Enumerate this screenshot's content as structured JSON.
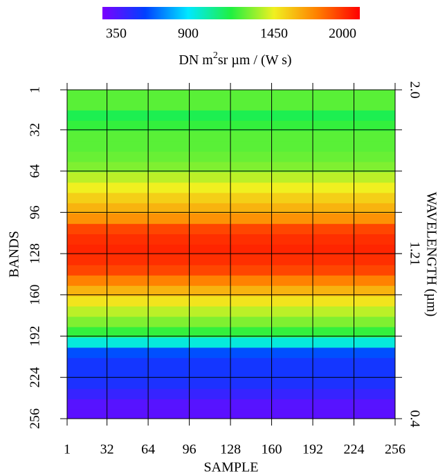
{
  "chart_data": {
    "type": "heatmap",
    "x_label": "SAMPLE",
    "y_label": "BANDS",
    "y2_label": "WAVELENGTH (µm)",
    "colorbar_label": {
      "text": "DN m",
      "sup": "2",
      "rest": "sr  µm / (W s)"
    },
    "clim": [
      350,
      2000
    ],
    "colorbar_ticks": [
      350,
      900,
      1450,
      2000
    ],
    "colormap": [
      "#7a00ff",
      "#0040ff",
      "#00e8ff",
      "#20f040",
      "#f0f020",
      "#ff8000",
      "#ff0000"
    ],
    "xlim": [
      1,
      256
    ],
    "xticks": [
      1,
      32,
      64,
      96,
      128,
      160,
      192,
      224,
      256
    ],
    "ylim": [
      1,
      256
    ],
    "yticks": [
      1,
      32,
      64,
      96,
      128,
      160,
      192,
      224,
      256
    ],
    "y2ticks": [
      {
        "value": 1,
        "label": "2.0"
      },
      {
        "value": 128,
        "label": "1.21"
      },
      {
        "value": 256,
        "label": "0.4"
      }
    ],
    "grid": true,
    "bands": [
      1,
      9,
      17,
      25,
      33,
      41,
      49,
      57,
      65,
      73,
      81,
      89,
      97,
      105,
      113,
      121,
      129,
      137,
      145,
      153,
      161,
      169,
      177,
      185,
      193,
      201,
      209,
      217,
      225,
      233,
      241,
      249,
      256
    ],
    "values": [
      1250,
      1250,
      1150,
      1200,
      1250,
      1250,
      1270,
      1300,
      1380,
      1450,
      1530,
      1600,
      1680,
      1850,
      1900,
      1920,
      1900,
      1850,
      1720,
      1600,
      1480,
      1380,
      1300,
      1200,
      950,
      650,
      580,
      580,
      560,
      500,
      430,
      420
    ]
  }
}
